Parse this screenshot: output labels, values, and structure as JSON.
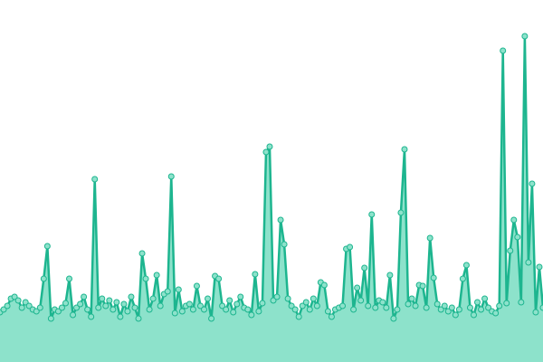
{
  "chart_data": {
    "type": "area",
    "color": "#1db58f",
    "fill": "#8de2cb",
    "ylim": [
      0,
      400
    ],
    "values": [
      55,
      58,
      62,
      70,
      72,
      68,
      60,
      66,
      62,
      58,
      56,
      60,
      92,
      128,
      48,
      58,
      56,
      60,
      65,
      92,
      52,
      60,
      64,
      72,
      58,
      50,
      202,
      60,
      70,
      62,
      68,
      58,
      66,
      50,
      64,
      56,
      72,
      60,
      48,
      120,
      92,
      58,
      70,
      96,
      62,
      75,
      78,
      205,
      54,
      80,
      56,
      62,
      64,
      58,
      84,
      62,
      58,
      70,
      48,
      95,
      92,
      62,
      58,
      68,
      55,
      64,
      72,
      60,
      58,
      52,
      97,
      56,
      65,
      232,
      238,
      68,
      72,
      157,
      130,
      70,
      62,
      58,
      50,
      62,
      66,
      58,
      70,
      62,
      88,
      85,
      56,
      50,
      58,
      60,
      62,
      125,
      127,
      58,
      82,
      68,
      104,
      62,
      163,
      60,
      68,
      66,
      60,
      96,
      48,
      58,
      165,
      235,
      64,
      70,
      62,
      85,
      84,
      60,
      137,
      93,
      64,
      58,
      62,
      56,
      60,
      52,
      58,
      92,
      107,
      60,
      52,
      66,
      58,
      70,
      60,
      56,
      54,
      62,
      344,
      65,
      123,
      157,
      138,
      66,
      360,
      110,
      197,
      55,
      105,
      60
    ]
  }
}
